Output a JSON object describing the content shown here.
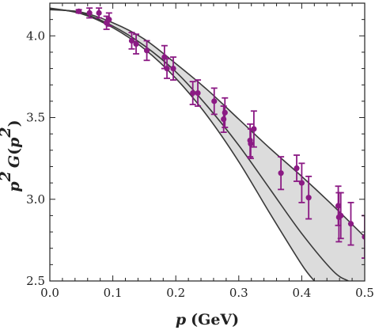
{
  "chart_data": {
    "type": "scatter",
    "title": "",
    "xlabel": {
      "var": "p",
      "unit": "(GeV)"
    },
    "ylabel": {
      "var": "p",
      "exp": "2",
      "func": "G",
      "arg_var": "p",
      "arg_exp": "2"
    },
    "xlim": [
      0.0,
      0.5
    ],
    "ylim": [
      2.5,
      4.2
    ],
    "x_ticks": [
      "0.0",
      "0.1",
      "0.2",
      "0.3",
      "0.4",
      "0.5"
    ],
    "x_tick_values": [
      0.0,
      0.1,
      0.2,
      0.3,
      0.4,
      0.5
    ],
    "y_ticks": [
      "2.5",
      "3.0",
      "3.5",
      "4.0"
    ],
    "y_tick_values": [
      2.5,
      3.0,
      3.5,
      4.0
    ],
    "grid": false,
    "colors": {
      "points": "#8b1a84",
      "band_fill": "#dcdcdc",
      "curves": "#3a3a3a",
      "axes": "#222222"
    },
    "series": [
      {
        "type": "errorbar",
        "points": [
          {
            "x": 0.046,
            "y": 4.15,
            "err": 0.01
          },
          {
            "x": 0.063,
            "y": 4.14,
            "err": 0.03
          },
          {
            "x": 0.078,
            "y": 4.14,
            "err": 0.03
          },
          {
            "x": 0.09,
            "y": 4.08,
            "err": 0.04
          },
          {
            "x": 0.094,
            "y": 4.1,
            "err": 0.04
          },
          {
            "x": 0.13,
            "y": 3.97,
            "err": 0.05
          },
          {
            "x": 0.137,
            "y": 3.95,
            "err": 0.06
          },
          {
            "x": 0.154,
            "y": 3.91,
            "err": 0.06
          },
          {
            "x": 0.182,
            "y": 3.87,
            "err": 0.07
          },
          {
            "x": 0.186,
            "y": 3.8,
            "err": 0.06
          },
          {
            "x": 0.196,
            "y": 3.8,
            "err": 0.07
          },
          {
            "x": 0.227,
            "y": 3.65,
            "err": 0.07
          },
          {
            "x": 0.235,
            "y": 3.65,
            "err": 0.08
          },
          {
            "x": 0.261,
            "y": 3.6,
            "err": 0.08
          },
          {
            "x": 0.276,
            "y": 3.49,
            "err": 0.08
          },
          {
            "x": 0.278,
            "y": 3.53,
            "err": 0.09
          },
          {
            "x": 0.318,
            "y": 3.36,
            "err": 0.1
          },
          {
            "x": 0.319,
            "y": 3.34,
            "err": 0.09
          },
          {
            "x": 0.324,
            "y": 3.43,
            "err": 0.11
          },
          {
            "x": 0.367,
            "y": 3.16,
            "err": 0.1
          },
          {
            "x": 0.392,
            "y": 3.19,
            "err": 0.08
          },
          {
            "x": 0.4,
            "y": 3.1,
            "err": 0.12
          },
          {
            "x": 0.411,
            "y": 3.01,
            "err": 0.13
          },
          {
            "x": 0.458,
            "y": 2.96,
            "err": 0.12
          },
          {
            "x": 0.459,
            "y": 2.89,
            "err": 0.15
          },
          {
            "x": 0.462,
            "y": 2.9,
            "err": 0.14
          },
          {
            "x": 0.478,
            "y": 2.85,
            "err": 0.13
          },
          {
            "x": 0.5,
            "y": 2.77,
            "err": 0.13
          }
        ]
      },
      {
        "type": "curve",
        "role": "upper-bound",
        "x": [
          0.0,
          0.05,
          0.1,
          0.15,
          0.2,
          0.25,
          0.3,
          0.35,
          0.4,
          0.45,
          0.5
        ],
        "y": [
          4.16,
          4.145,
          4.08,
          3.98,
          3.83,
          3.67,
          3.49,
          3.31,
          3.14,
          2.96,
          2.77
        ]
      },
      {
        "type": "curve",
        "role": "central",
        "x": [
          0.0,
          0.05,
          0.1,
          0.15,
          0.2,
          0.25,
          0.3,
          0.35,
          0.4,
          0.45,
          0.474
        ],
        "y": [
          4.165,
          4.14,
          4.06,
          3.94,
          3.78,
          3.57,
          3.33,
          3.06,
          2.79,
          2.56,
          2.5
        ]
      },
      {
        "type": "curve",
        "role": "lower-bound",
        "x": [
          0.0,
          0.05,
          0.1,
          0.15,
          0.2,
          0.25,
          0.3,
          0.35,
          0.4,
          0.42
        ],
        "y": [
          4.17,
          4.135,
          4.05,
          3.92,
          3.74,
          3.51,
          3.23,
          2.91,
          2.6,
          2.5
        ]
      }
    ]
  }
}
